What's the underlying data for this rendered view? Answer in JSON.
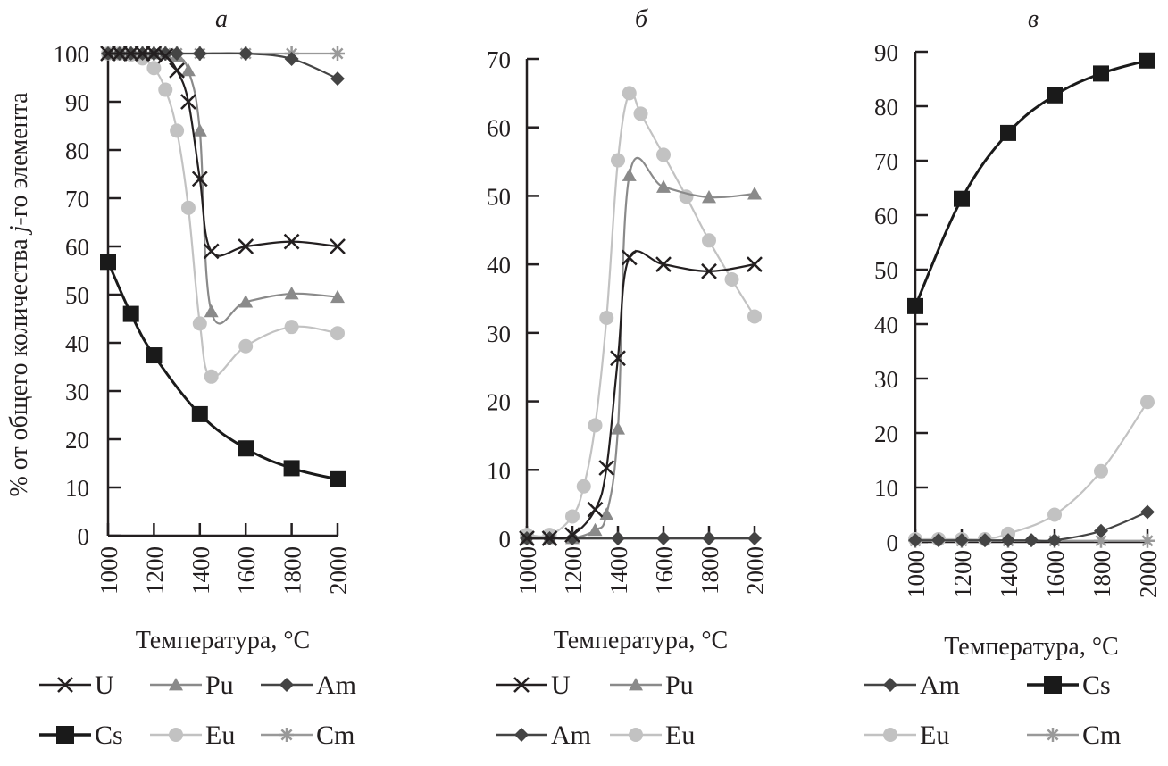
{
  "ylabel": "% от общего количества j-го элемента",
  "ylabel_parts": {
    "pre": "% от общего количества ",
    "italic": "j",
    "post": "-го элемента"
  },
  "styles": {
    "U": {
      "color": "#231f20",
      "marker": "x"
    },
    "Pu": {
      "color": "#8a8a8a",
      "marker": "triangle"
    },
    "Am": {
      "color": "#444444",
      "marker": "diamond"
    },
    "Cs": {
      "color": "#1a1a1a",
      "marker": "square"
    },
    "Eu": {
      "color": "#c2c2c2",
      "marker": "circle"
    },
    "Cm": {
      "color": "#999999",
      "marker": "asterisk"
    }
  },
  "chart_data": [
    {
      "type": "line",
      "title": "а",
      "xlabel": "Температура, °C",
      "ylabel": "% от общего количества j-го элемента",
      "xlim": [
        1000,
        2000
      ],
      "ylim": [
        0,
        100
      ],
      "xticks": [
        1000,
        1200,
        1400,
        1600,
        1800,
        2000
      ],
      "yticks": [
        0,
        10,
        20,
        30,
        40,
        50,
        60,
        70,
        80,
        90,
        100
      ],
      "legend": [
        "U",
        "Pu",
        "Am",
        "Cs",
        "Eu",
        "Cm"
      ],
      "legend_position": "bottom",
      "series": [
        {
          "name": "U",
          "x": [
            1000,
            1050,
            1100,
            1150,
            1200,
            1250,
            1300,
            1350,
            1400,
            1450,
            1600,
            1800,
            2000
          ],
          "y": [
            100,
            100,
            100,
            100,
            100,
            99.5,
            96.5,
            90,
            74,
            59,
            60,
            61,
            60
          ]
        },
        {
          "name": "Pu",
          "x": [
            1000,
            1050,
            1100,
            1150,
            1200,
            1250,
            1300,
            1350,
            1400,
            1450,
            1600,
            1800,
            2000
          ],
          "y": [
            100,
            100,
            100,
            100,
            100,
            100,
            99.5,
            96.5,
            84,
            46.5,
            48.5,
            50.2,
            49.5
          ]
        },
        {
          "name": "Am",
          "x": [
            1000,
            1050,
            1100,
            1150,
            1200,
            1250,
            1300,
            1400,
            1600,
            1800,
            2000
          ],
          "y": [
            100,
            100,
            100,
            100,
            100,
            100,
            100,
            100,
            100,
            98.9,
            94.8
          ]
        },
        {
          "name": "Cs",
          "x": [
            1000,
            1100,
            1200,
            1400,
            1600,
            1800,
            2000
          ],
          "y": [
            56.8,
            46,
            37.4,
            25.2,
            18.1,
            14,
            11.7
          ]
        },
        {
          "name": "Eu",
          "x": [
            1000,
            1050,
            1100,
            1150,
            1200,
            1250,
            1300,
            1350,
            1400,
            1450,
            1600,
            1800,
            2000
          ],
          "y": [
            100,
            100,
            99.8,
            99,
            97,
            92.5,
            84,
            68,
            44,
            33,
            39.3,
            43.3,
            42
          ]
        },
        {
          "name": "Cm",
          "x": [
            1000,
            1050,
            1100,
            1150,
            1200,
            1250,
            1300,
            1400,
            1600,
            1800,
            2000
          ],
          "y": [
            100,
            100,
            100,
            100,
            100,
            100,
            100,
            100,
            100,
            100,
            100
          ]
        }
      ]
    },
    {
      "type": "line",
      "title": "б",
      "xlabel": "Температура, °C",
      "xlim": [
        1000,
        2000
      ],
      "ylim": [
        0,
        70
      ],
      "xticks": [
        1000,
        1200,
        1400,
        1600,
        1800,
        2000
      ],
      "yticks": [
        0,
        10,
        20,
        30,
        40,
        50,
        60,
        70
      ],
      "legend": [
        "U",
        "Pu",
        "Am",
        "Eu"
      ],
      "legend_position": "bottom",
      "series": [
        {
          "name": "U",
          "x": [
            1000,
            1100,
            1200,
            1300,
            1350,
            1400,
            1450,
            1600,
            1800,
            2000
          ],
          "y": [
            0,
            0,
            0.5,
            4.2,
            10.3,
            26.3,
            41,
            40,
            39,
            40
          ]
        },
        {
          "name": "Pu",
          "x": [
            1000,
            1100,
            1200,
            1300,
            1350,
            1400,
            1450,
            1600,
            1800,
            2000
          ],
          "y": [
            0,
            0,
            0,
            1.2,
            3.5,
            16,
            53,
            51.3,
            49.8,
            50.3
          ]
        },
        {
          "name": "Am",
          "x": [
            1000,
            1100,
            1200,
            1400,
            1600,
            1800,
            2000
          ],
          "y": [
            0,
            0,
            0,
            0,
            0,
            0,
            0
          ]
        },
        {
          "name": "Eu",
          "x": [
            1000,
            1100,
            1200,
            1250,
            1300,
            1350,
            1400,
            1450,
            1500,
            1600,
            1700,
            1800,
            1900,
            2000
          ],
          "y": [
            0.5,
            0.5,
            3.2,
            7.6,
            16.5,
            32.2,
            55.2,
            65,
            62,
            56,
            49.9,
            43.5,
            37.8,
            32.4
          ]
        }
      ]
    },
    {
      "type": "line",
      "title": "в",
      "xlabel": "Температура, °C",
      "xlim": [
        1000,
        2000
      ],
      "ylim": [
        0,
        90
      ],
      "xticks": [
        1000,
        1200,
        1400,
        1600,
        1800,
        2000
      ],
      "yticks": [
        0,
        10,
        20,
        30,
        40,
        50,
        60,
        70,
        80,
        90
      ],
      "legend": [
        "Am",
        "Cs",
        "Eu",
        "Cm"
      ],
      "legend_position": "bottom",
      "series": [
        {
          "name": "Am",
          "x": [
            1000,
            1100,
            1200,
            1300,
            1400,
            1500,
            1600,
            1800,
            2000
          ],
          "y": [
            0.3,
            0.3,
            0.3,
            0.3,
            0.3,
            0.3,
            0.3,
            2,
            5.5
          ]
        },
        {
          "name": "Cs",
          "x": [
            1000,
            1200,
            1400,
            1600,
            1800,
            2000
          ],
          "y": [
            43.3,
            63,
            75.1,
            82,
            86,
            88.4
          ]
        },
        {
          "name": "Eu",
          "x": [
            1000,
            1100,
            1200,
            1300,
            1400,
            1600,
            1800,
            2000
          ],
          "y": [
            0.5,
            0.5,
            0.5,
            0.5,
            1.5,
            5,
            13,
            25.7
          ]
        },
        {
          "name": "Cm",
          "x": [
            1000,
            1200,
            1400,
            1600,
            1800,
            2000
          ],
          "y": [
            0.2,
            0.2,
            0.2,
            0.2,
            0.2,
            0.2
          ]
        }
      ]
    }
  ]
}
